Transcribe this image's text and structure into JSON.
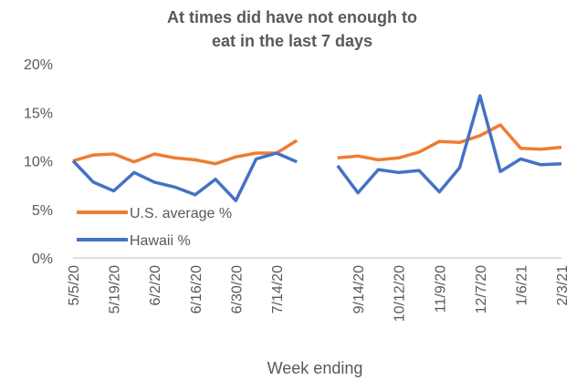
{
  "chart_data": {
    "type": "line",
    "title": "At times did have not enough to eat in the last 7 days",
    "x_label": "Week ending",
    "categories": [
      "5/5/20",
      null,
      "5/19/20",
      null,
      "6/2/20",
      null,
      "6/16/20",
      null,
      "6/30/20",
      null,
      "7/14/20",
      null,
      null,
      null,
      "9/14/20",
      null,
      "10/12/20",
      null,
      "11/9/20",
      null,
      "12/7/20",
      null,
      "1/6/21",
      null,
      "2/3/21"
    ],
    "series": [
      {
        "name": "U.S. average %",
        "color": "#ed7d31",
        "values": [
          10.0,
          10.6,
          10.7,
          9.9,
          10.7,
          10.3,
          10.1,
          9.7,
          10.4,
          10.8,
          10.8,
          12.1,
          null,
          10.3,
          10.5,
          10.1,
          10.3,
          10.9,
          12.0,
          11.9,
          12.6,
          13.7,
          11.3,
          11.2,
          11.4
        ]
      },
      {
        "name": "Hawaii %",
        "color": "#4472c4",
        "values": [
          10.0,
          7.8,
          6.9,
          8.8,
          7.8,
          7.3,
          6.5,
          8.1,
          5.9,
          10.2,
          10.8,
          9.9,
          null,
          9.5,
          6.7,
          9.1,
          8.8,
          9.0,
          6.8,
          9.3,
          16.7,
          8.9,
          10.2,
          9.6,
          9.7
        ]
      }
    ],
    "ylim": [
      0,
      20
    ],
    "yticks": [
      {
        "value": 0,
        "label": "0%"
      },
      {
        "value": 5,
        "label": "5%"
      },
      {
        "value": 10,
        "label": "10%"
      },
      {
        "value": 15,
        "label": "15%"
      },
      {
        "value": 20,
        "label": "20%"
      }
    ],
    "legend": "lower left"
  }
}
